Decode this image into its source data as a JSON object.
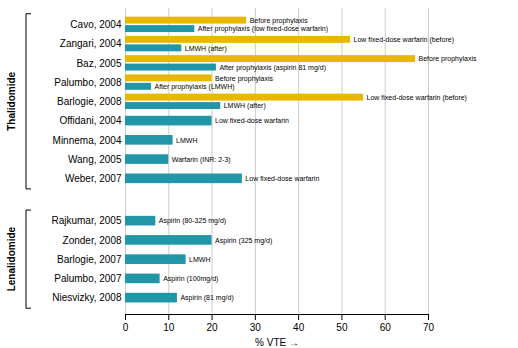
{
  "chart_data": {
    "type": "bar",
    "orientation": "horizontal",
    "xlabel": "% VTE",
    "xlim": [
      0,
      70
    ],
    "xticks": [
      0,
      10,
      20,
      30,
      40,
      50,
      60,
      70
    ],
    "grid": true,
    "groups": [
      {
        "label": "Thalidomide",
        "categories": [
          "Cavo, 2004",
          "Zangari, 2004",
          "Baz, 2005",
          "Palumbo, 2008",
          "Barlogie, 2008",
          "Offidani, 2004",
          "Minnema, 2004",
          "Wang, 2005",
          "Weber, 2007"
        ],
        "series": [
          {
            "color": "#E8B800",
            "values": [
              28,
              52,
              67,
              20,
              55,
              null,
              null,
              null,
              null
            ],
            "annotations": [
              "Before prophylaxis",
              "Low fixed-dose warfarin (before)",
              "Before prophylaxis",
              "Before prophylaxis",
              "Low fixed-dose warfarin (before)",
              null,
              null,
              null,
              null
            ]
          },
          {
            "color": "#2196A8",
            "values": [
              16,
              13,
              21,
              6,
              22,
              20,
              11,
              10,
              27
            ],
            "annotations": [
              "After prophylaxis (low fixed-dose warfarin)",
              "LMWH (after)",
              "After prophylaxis (aspirin 81 mg/d)",
              "After prophylaxis (LMWH)",
              "LMWH (after)",
              "Low fixed-dose warfarin",
              "LMWH",
              "Warfarin (INR: 2-3)",
              "Low fixed-dose warfarin"
            ]
          }
        ]
      },
      {
        "label": "Lenalidomide",
        "categories": [
          "Rajkumar, 2005",
          "Zonder, 2008",
          "Barlogie, 2007",
          "Palumbo, 2007",
          "Niesvizky, 2008"
        ],
        "series": [
          {
            "color": "#2196A8",
            "values": [
              7,
              20,
              14,
              8,
              12
            ],
            "annotations": [
              "Aspirin (80-325 mg/d)",
              "Aspirin (325 mg/d)",
              "LMWH",
              "Aspirin (100mg/d)",
              "Aspirin (81 mg/d)"
            ]
          }
        ]
      }
    ]
  }
}
